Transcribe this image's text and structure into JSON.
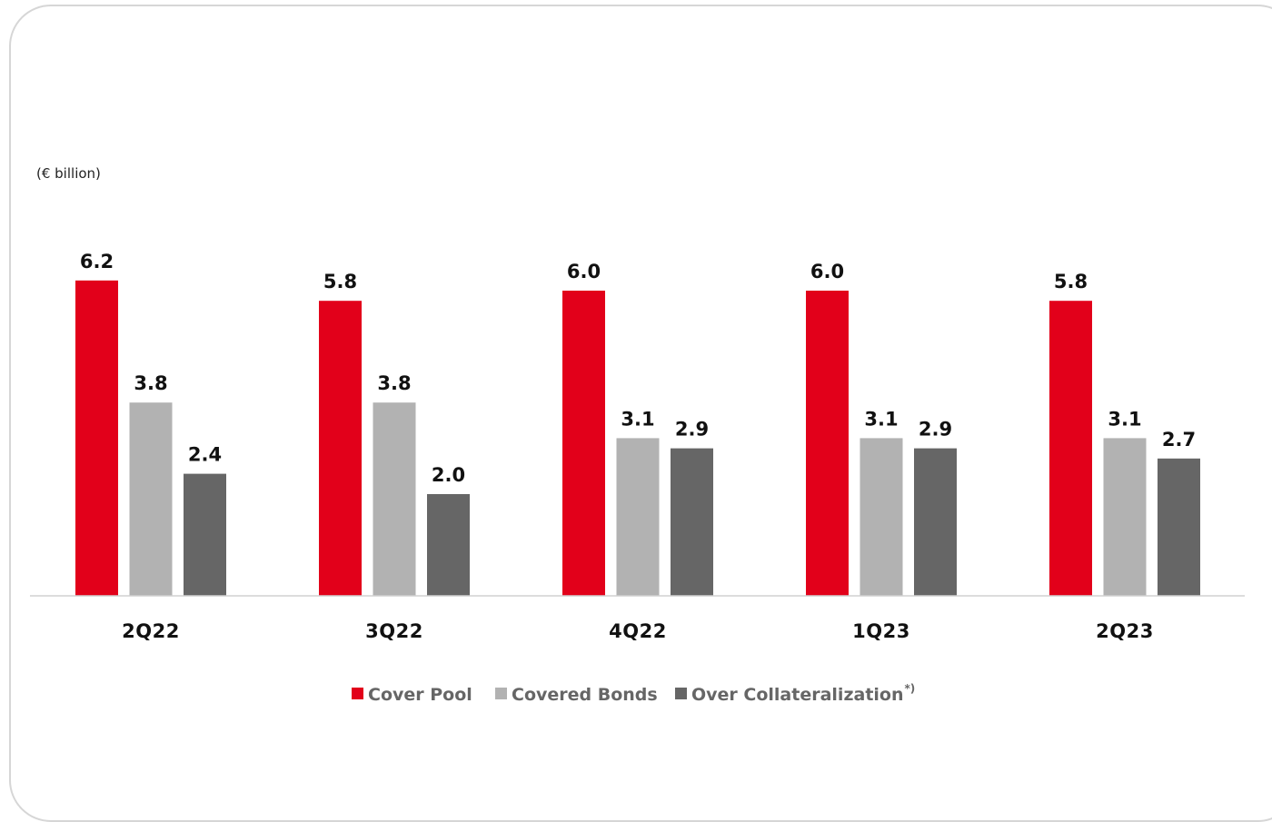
{
  "chart_data": {
    "type": "bar",
    "unit_label": "(€ billion)",
    "categories": [
      "2Q22",
      "3Q22",
      "4Q22",
      "1Q23",
      "2Q23"
    ],
    "series": [
      {
        "name": "Cover Pool",
        "color": "#e2001a",
        "values": [
          6.2,
          5.8,
          6.0,
          6.0,
          5.8
        ]
      },
      {
        "name": "Covered Bonds",
        "color": "#b2b2b2",
        "values": [
          3.8,
          3.8,
          3.1,
          3.1,
          3.1
        ]
      },
      {
        "name": "Over Collateralization",
        "name_superscript": "*)",
        "color": "#666666",
        "values": [
          2.4,
          2.0,
          2.9,
          2.9,
          2.7
        ]
      }
    ],
    "ylim": [
      0,
      7.0
    ],
    "grid": false,
    "legend_position": "bottom-center"
  }
}
